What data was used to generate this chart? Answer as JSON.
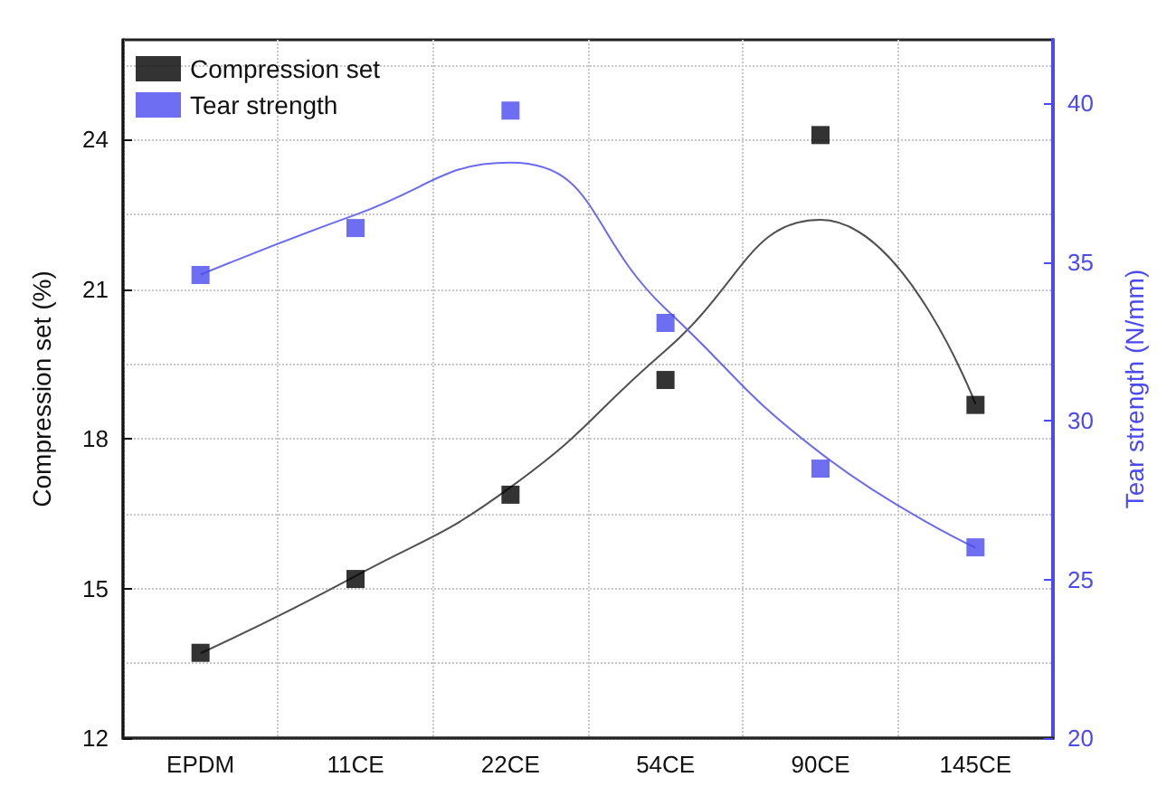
{
  "chart_data": {
    "type": "scatter",
    "ylabel": "Compression set (%)",
    "y2label": "Tear strength (N/mm)",
    "categories": [
      "EPDM",
      "11CE",
      "22CE",
      "54CE",
      "90CE",
      "145CE"
    ],
    "series": [
      {
        "name": "Compression set",
        "marker": "square",
        "color": "#000000",
        "values": [
          13.71,
          15.19,
          16.88,
          19.18,
          24.09,
          18.68
        ]
      },
      {
        "name": "Tear strength",
        "marker": "square",
        "axis": "y2",
        "color": "#4a4af0",
        "values": [
          34.59,
          36.07,
          39.77,
          33.08,
          28.49,
          26.01
        ]
      },
      {
        "type": "line",
        "color": "#505050",
        "values": [
          13.7,
          15.25,
          17.03,
          19.77,
          22.39,
          18.7
        ]
      },
      {
        "type": "line",
        "axis": "y2",
        "color": "#6a6af5",
        "values": [
          34.6,
          36.49,
          38.13,
          33.53,
          28.98,
          26.0
        ]
      }
    ],
    "ylim": [
      12,
      26
    ],
    "yticks": [
      12,
      15,
      18,
      21,
      24
    ],
    "y2lim": [
      20,
      42
    ],
    "y2ticks": [
      20,
      25,
      30,
      35,
      40
    ],
    "grid": true,
    "legend": "top left"
  }
}
